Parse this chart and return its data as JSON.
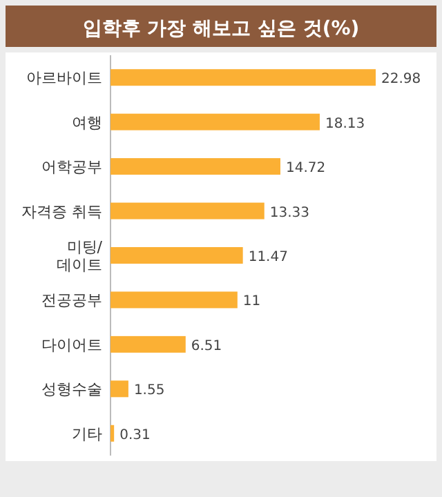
{
  "chart_data": {
    "type": "bar",
    "orientation": "horizontal",
    "title": "입학후 가장 해보고 싶은 것(%)",
    "categories": [
      "아르바이트",
      "여행",
      "어학공부",
      "자격증 취득",
      "미팅/데이트",
      "전공공부",
      "다이어트",
      "성형수술",
      "기타"
    ],
    "values": [
      22.98,
      18.13,
      14.72,
      13.33,
      11.47,
      11,
      6.51,
      1.55,
      0.31
    ],
    "color": "#fbb034",
    "data_labels": true
  }
}
